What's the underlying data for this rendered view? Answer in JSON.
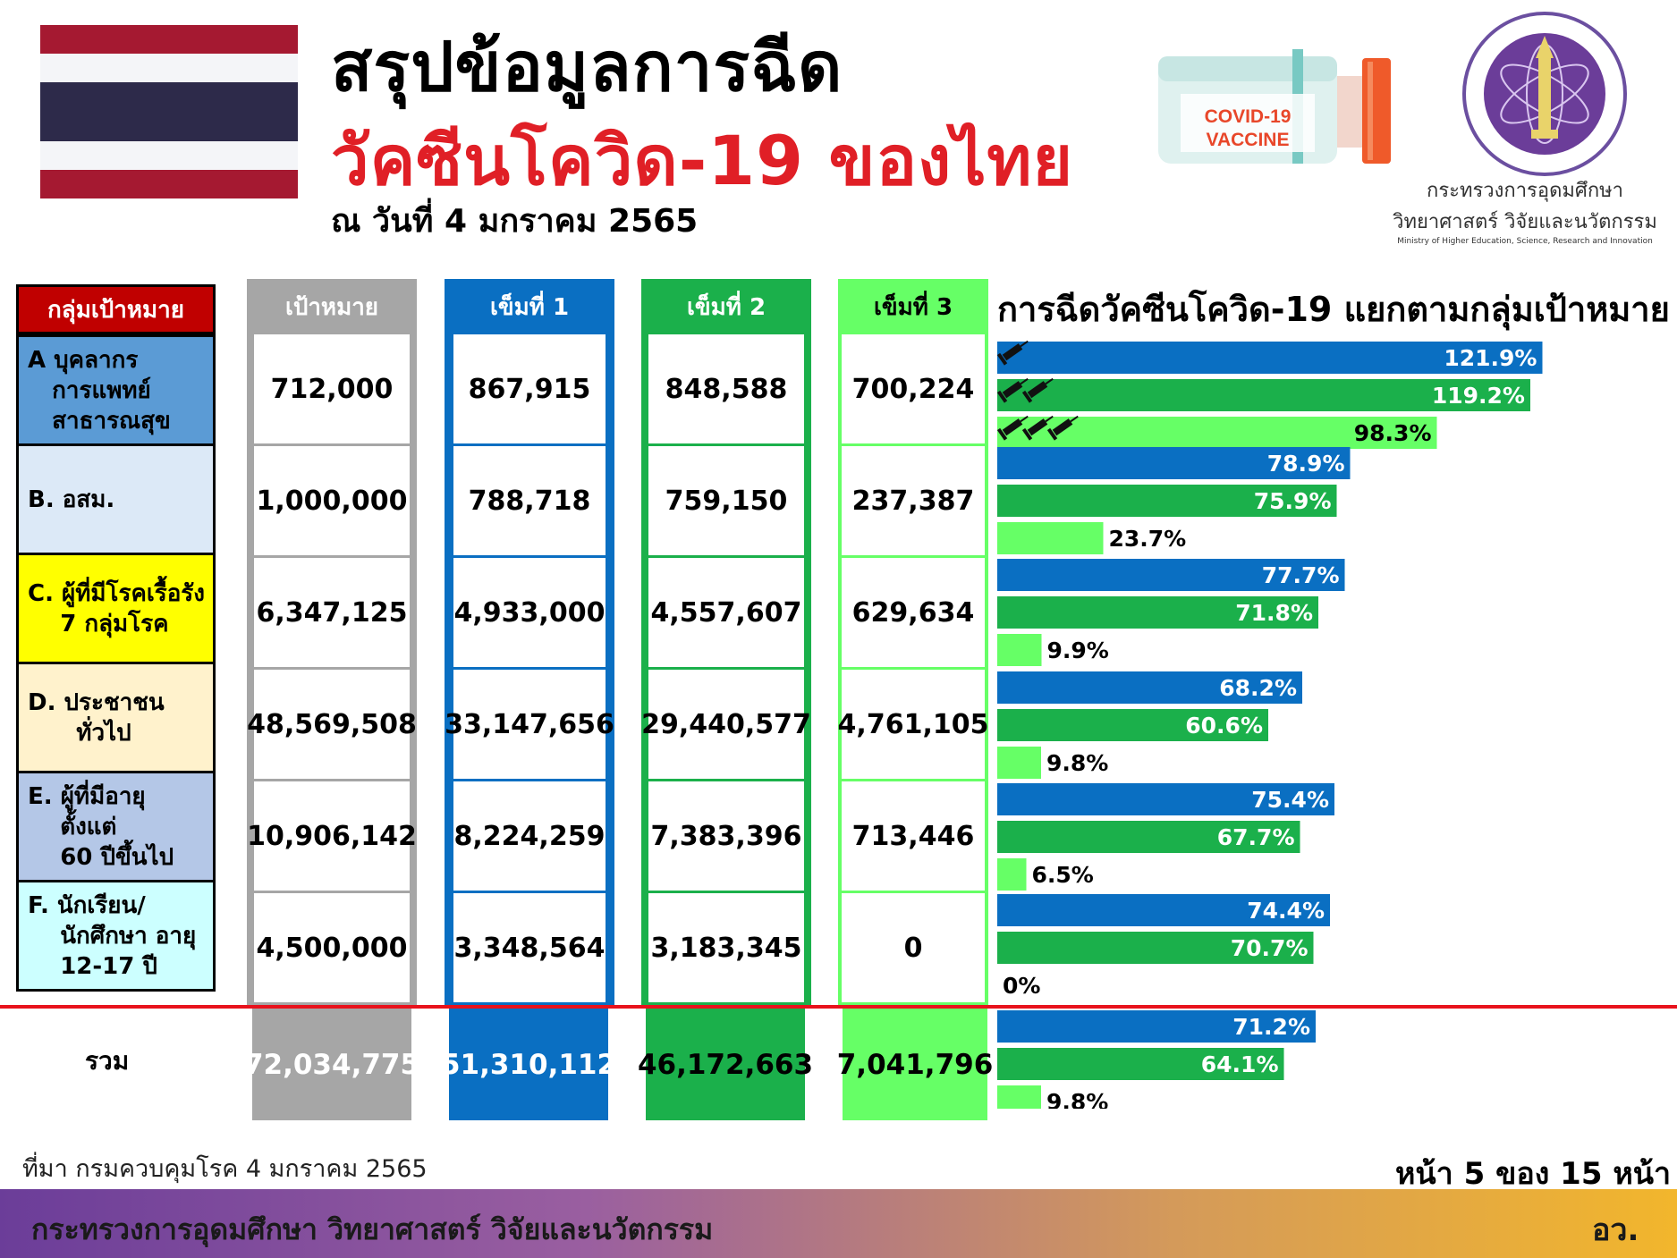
{
  "header": {
    "title_line1": "สรุปข้อมูลการฉีด",
    "title_line2": "วัคซีนโควิด-19 ของไทย",
    "date": "ณ วันที่ 4 มกราคม 2565",
    "vaccine_label_1": "COVID-19",
    "vaccine_label_2": "VACCINE",
    "ministry_th_1": "กระทรวงการอุดมศึกษา",
    "ministry_th_2": "วิทยาศาสตร์ วิจัยและนวัตกรรม",
    "ministry_en": "Ministry of Higher Education, Science, Research and Innovation"
  },
  "colors": {
    "flag_red": "#a51931",
    "flag_blue": "#2d2a4a",
    "dose1": "#0a6fc2",
    "dose2": "#1bb04b",
    "dose3": "#66ff66",
    "target": "#a6a6a6",
    "group_header": "#c00000"
  },
  "table": {
    "headers": {
      "group": "กลุ่มเป้าหมาย",
      "target": "เป้าหมาย",
      "dose1": "เข็มที่ 1",
      "dose2": "เข็มที่ 2",
      "dose3": "เข็มที่ 3"
    },
    "rows": [
      {
        "label": "A บุคลากร\n   การแพทย์\n   สาธารณสุข",
        "color": "#5b9bd5",
        "target": "712,000",
        "dose1": "867,915",
        "dose2": "848,588",
        "dose3": "700,224"
      },
      {
        "label": "B. อสม.",
        "color": "#dce9f7",
        "target": "1,000,000",
        "dose1": "788,718",
        "dose2": "759,150",
        "dose3": "237,387"
      },
      {
        "label": "C. ผู้ที่มีโรคเรื้อรัง\n    7 กลุ่มโรค",
        "color": "#ffff00",
        "target": "6,347,125",
        "dose1": "4,933,000",
        "dose2": "4,557,607",
        "dose3": "629,634"
      },
      {
        "label": "D. ประชาชน\n      ทั่วไป",
        "color": "#fff2cc",
        "target": "48,569,508",
        "dose1": "33,147,656",
        "dose2": "29,440,577",
        "dose3": "4,761,105"
      },
      {
        "label": "E. ผู้ที่มีอายุ\n    ตั้งแต่\n    60 ปีขึ้นไป",
        "color": "#b4c7e7",
        "target": "10,906,142",
        "dose1": "8,224,259",
        "dose2": "7,383,396",
        "dose3": "713,446"
      },
      {
        "label": "F. นักเรียน/\n    นักศึกษา อายุ\n    12-17 ปี",
        "color": "#ccffff",
        "target": "4,500,000",
        "dose1": "3,348,564",
        "dose2": "3,183,345",
        "dose3": "0"
      }
    ],
    "total": {
      "label": "รวม",
      "target": "72,034,775",
      "dose1": "51,310,112",
      "dose2": "46,172,663",
      "dose3": "7,041,796"
    }
  },
  "chart_data": {
    "type": "bar",
    "title": "การฉีดวัคซีนโควิด-19 แยกตามกลุ่มเป้าหมาย",
    "orientation": "horizontal",
    "categories": [
      "A",
      "B.",
      "C.",
      "D.",
      "E.",
      "F.",
      "รวม"
    ],
    "series": [
      {
        "values": [
          121.9,
          78.9,
          77.7,
          68.2,
          75.4,
          74.4,
          71.2
        ],
        "labels": [
          "121.9%",
          "78.9%",
          "77.7%",
          "68.2%",
          "75.4%",
          "74.4%",
          "71.2%"
        ],
        "color": "#0a6fc2"
      },
      {
        "values": [
          119.2,
          75.9,
          71.8,
          60.6,
          67.7,
          70.7,
          64.1
        ],
        "labels": [
          "119.2%",
          "75.9%",
          "71.8%",
          "60.6%",
          "67.7%",
          "70.7%",
          "64.1%"
        ],
        "color": "#1bb04b"
      },
      {
        "values": [
          98.3,
          23.7,
          9.9,
          9.8,
          6.5,
          0,
          9.8
        ],
        "labels": [
          "98.3%",
          "23.7%",
          "9.9%",
          "9.8%",
          "6.5%",
          "0%",
          "9.8%"
        ],
        "color": "#66ff66"
      }
    ],
    "grid": false
  },
  "footer": {
    "source": "ที่มา กรมควบคุมโรค 4 มกราคม 2565",
    "page": "หน้า 5 ของ 15 หน้า",
    "ministry": "กระทรวงการอุดมศึกษา วิทยาศาสตร์ วิจัยและนวัตกรรม",
    "abbr": "อว."
  }
}
